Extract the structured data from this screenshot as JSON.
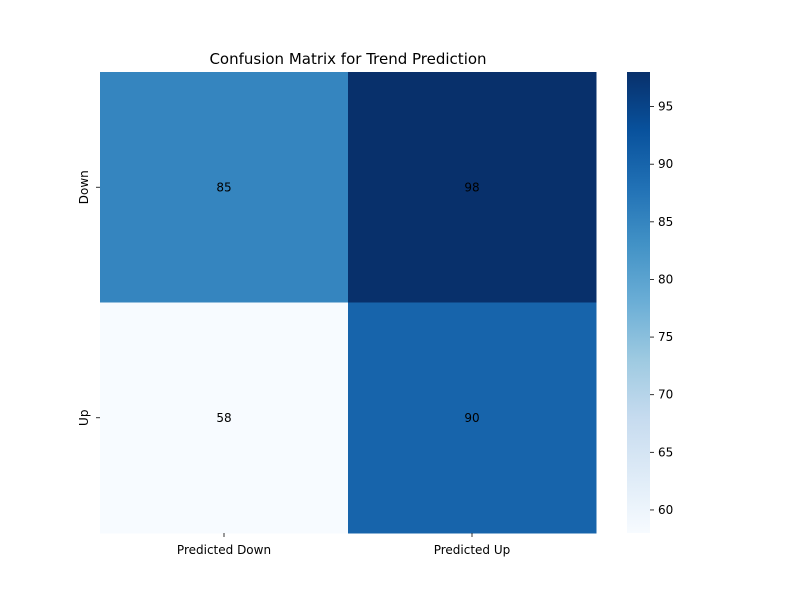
{
  "chart_data": {
    "type": "heatmap",
    "title": "Confusion Matrix for Trend Prediction",
    "xlabel": "",
    "ylabel": "",
    "x_categories": [
      "Predicted Down",
      "Predicted Up"
    ],
    "y_categories": [
      "Down",
      "Up"
    ],
    "values": [
      [
        85,
        98
      ],
      [
        58,
        90
      ]
    ],
    "colormap": "Blues",
    "colorbar": {
      "range": [
        58,
        98
      ],
      "ticks": [
        60,
        65,
        70,
        75,
        80,
        85,
        90,
        95
      ]
    },
    "annotations": true
  }
}
